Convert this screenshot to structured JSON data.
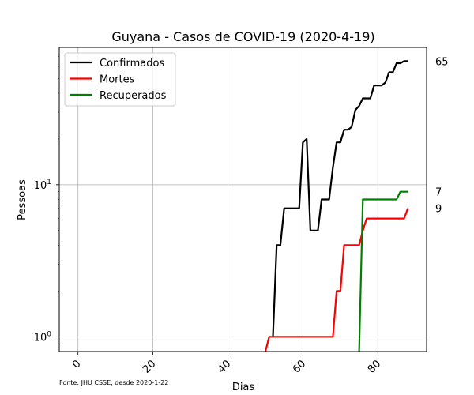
{
  "chart_data": {
    "type": "line",
    "title": "Guyana - Casos de COVID-19 (2020-4-19)",
    "xlabel": "Dias",
    "ylabel": "Pessoas",
    "yscale": "log",
    "xlim": [
      -5,
      93
    ],
    "ylim": [
      0.8,
      80
    ],
    "x_ticks": [
      0,
      20,
      40,
      60,
      80
    ],
    "y_ticks": [
      {
        "value": 1,
        "label": "10^0"
      },
      {
        "value": 10,
        "label": "10^1"
      }
    ],
    "grid": true,
    "legend_position": "top-left",
    "source_note": "Fonte: JHU CSSE, desde 2020-1-22",
    "end_labels": [
      "65",
      "9",
      "7"
    ],
    "series": [
      {
        "name": "Confirmados",
        "color": "#000000",
        "x": [
          52,
          53,
          54,
          55,
          56,
          57,
          58,
          59,
          60,
          61,
          62,
          63,
          64,
          65,
          66,
          67,
          68,
          69,
          70,
          71,
          72,
          73,
          74,
          75,
          76,
          77,
          78,
          79,
          80,
          81,
          82,
          83,
          84,
          85,
          86,
          87,
          88
        ],
        "y": [
          1,
          4,
          4,
          7,
          7,
          7,
          7,
          7,
          19,
          20,
          5,
          5,
          5,
          8,
          8,
          8,
          13,
          19,
          19,
          23,
          23,
          24,
          31,
          33,
          37,
          37,
          37,
          45,
          45,
          45,
          47,
          55,
          55,
          63,
          63,
          65,
          65
        ]
      },
      {
        "name": "Mortes",
        "color": "#ff0000",
        "x": [
          50,
          51,
          52,
          53,
          54,
          55,
          56,
          57,
          58,
          59,
          60,
          61,
          62,
          63,
          64,
          65,
          66,
          67,
          68,
          69,
          70,
          71,
          72,
          73,
          74,
          75,
          76,
          77,
          78,
          79,
          80,
          81,
          82,
          83,
          84,
          85,
          86,
          87,
          88
        ],
        "y": [
          0.5,
          1,
          1,
          1,
          1,
          1,
          1,
          1,
          1,
          1,
          1,
          1,
          1,
          1,
          1,
          1,
          1,
          1,
          1,
          2,
          2,
          4,
          4,
          4,
          4,
          4,
          5,
          6,
          6,
          6,
          6,
          6,
          6,
          6,
          6,
          6,
          6,
          6,
          7
        ]
      },
      {
        "name": "Recuperados",
        "color": "#008000",
        "x": [
          75,
          76,
          77,
          78,
          79,
          80,
          81,
          82,
          83,
          84,
          85,
          86,
          87,
          88
        ],
        "y": [
          0.5,
          8,
          8,
          8,
          8,
          8,
          8,
          8,
          8,
          8,
          8,
          9,
          9,
          9
        ]
      }
    ]
  }
}
